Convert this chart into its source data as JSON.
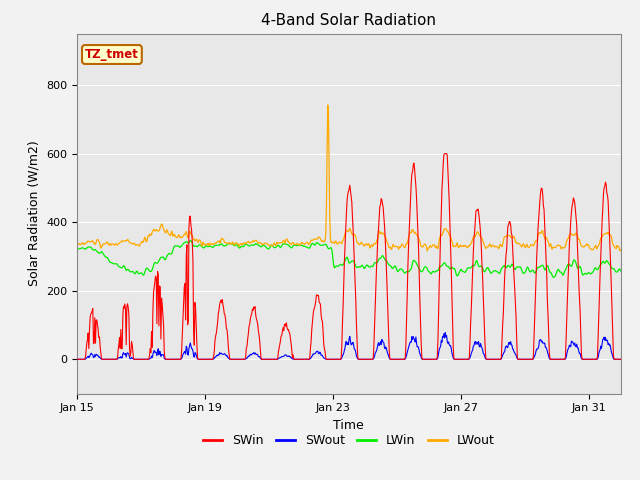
{
  "title": "4-Band Solar Radiation",
  "xlabel": "Time",
  "ylabel": "Solar Radiation (W/m2)",
  "ylim": [
    -100,
    950
  ],
  "xlim_days": [
    0,
    17
  ],
  "xtick_positions": [
    0,
    4,
    8,
    12,
    16
  ],
  "xtick_labels": [
    "Jan 15",
    "Jan 19",
    "Jan 23",
    "Jan 27",
    "Jan 31"
  ],
  "annotation_text": "TZ_tmet",
  "annotation_box_facecolor": "#ffffcc",
  "annotation_box_edgecolor": "#bb6600",
  "annotation_text_color": "#cc0000",
  "colors": {
    "SWin": "#ff0000",
    "SWout": "#0000ff",
    "LWin": "#00ee00",
    "LWout": "#ffaa00"
  },
  "legend_labels": [
    "SWin",
    "SWout",
    "LWin",
    "LWout"
  ],
  "plot_bg_color": "#e8e8e8",
  "fig_bg_color": "#f2f2f2",
  "grid_color": "#ffffff",
  "title_fontsize": 11,
  "axis_label_fontsize": 9,
  "tick_label_fontsize": 8,
  "legend_fontsize": 9
}
